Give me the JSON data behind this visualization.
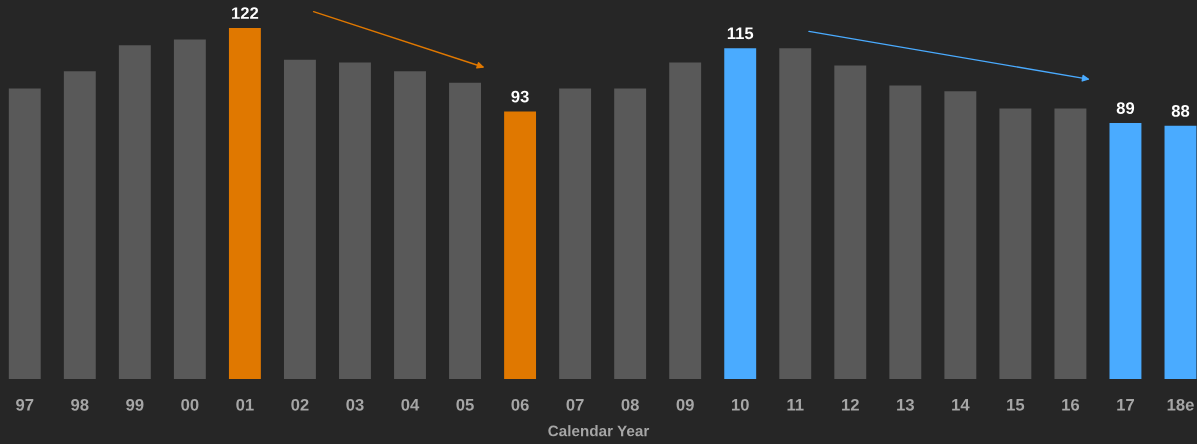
{
  "chart_data": {
    "type": "bar",
    "xlabel": "Calendar Year",
    "categories": [
      "97",
      "98",
      "99",
      "00",
      "01",
      "02",
      "03",
      "04",
      "05",
      "06",
      "07",
      "08",
      "09",
      "10",
      "11",
      "12",
      "13",
      "14",
      "15",
      "16",
      "17",
      "18e"
    ],
    "values": [
      101,
      107,
      116,
      118,
      122,
      111,
      110,
      107,
      103,
      93,
      101,
      101,
      110,
      115,
      115,
      109,
      102,
      100,
      94,
      94,
      89,
      88
    ],
    "value_labels": [
      null,
      null,
      null,
      null,
      "122",
      null,
      null,
      null,
      null,
      "93",
      null,
      null,
      null,
      "115",
      null,
      null,
      null,
      null,
      null,
      null,
      "89",
      "88"
    ],
    "colors": [
      "#595959",
      "#595959",
      "#595959",
      "#595959",
      "#e07800",
      "#595959",
      "#595959",
      "#595959",
      "#595959",
      "#e07800",
      "#595959",
      "#595959",
      "#595959",
      "#4aabff",
      "#595959",
      "#595959",
      "#595959",
      "#595959",
      "#595959",
      "#595959",
      "#4aabff",
      "#4aabff"
    ],
    "grid": false,
    "legend": false
  }
}
